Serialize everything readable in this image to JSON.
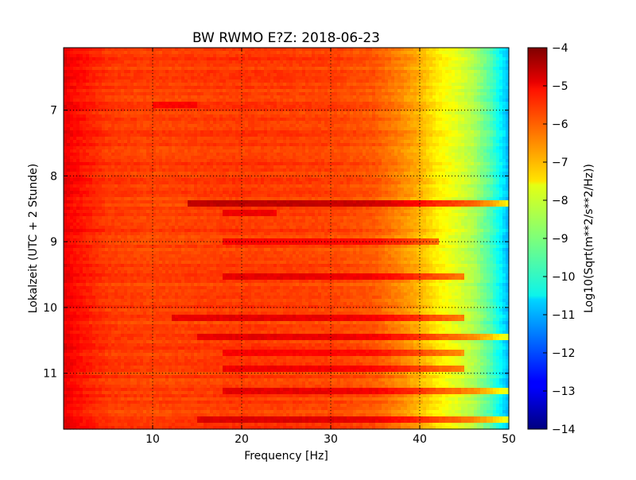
{
  "chart_data": {
    "type": "heatmap",
    "title": "BW RWMO E?Z: 2018-06-23",
    "xlabel": "Frequency [Hz]",
    "ylabel": "Lokalzeit (UTC + 2 Stunde)",
    "xlim": [
      0,
      50
    ],
    "ylim": [
      11.85,
      6.05
    ],
    "y_inverted": true,
    "grid": true,
    "x_ticks": [
      10,
      20,
      30,
      40,
      50
    ],
    "y_ticks": [
      7,
      8,
      9,
      10,
      11
    ],
    "colormap": "jet",
    "colorbar": {
      "label": "Log10(Sqrt(m**2/s**2/Hz))",
      "range": [
        -14,
        -4
      ],
      "ticks": [
        -4,
        -5,
        -6,
        -7,
        -8,
        -9,
        -10,
        -11,
        -12,
        -13,
        -14
      ]
    },
    "spectral_profile": {
      "frequency_hz": [
        0,
        1,
        5,
        10,
        20,
        30,
        35,
        38,
        40,
        42,
        44,
        46,
        48,
        50
      ],
      "log10_amplitude": [
        -5.0,
        -5.3,
        -5.8,
        -5.9,
        -5.8,
        -5.9,
        -6.1,
        -6.6,
        -7.0,
        -7.6,
        -8.0,
        -8.5,
        -9.5,
        -11.0
      ]
    },
    "high_amplitude_bands": [
      {
        "time": 6.9,
        "freq_range": [
          10,
          15
        ],
        "level": -5.2
      },
      {
        "time": 8.42,
        "freq_range": [
          14,
          50
        ],
        "level": -4.6
      },
      {
        "time": 8.58,
        "freq_range": [
          18,
          24
        ],
        "level": -5.1
      },
      {
        "time": 8.98,
        "freq_range": [
          18,
          42
        ],
        "level": -5.2
      },
      {
        "time": 9.55,
        "freq_range": [
          18,
          45
        ],
        "level": -5.0
      },
      {
        "time": 10.18,
        "freq_range": [
          12,
          45
        ],
        "level": -5.0
      },
      {
        "time": 10.45,
        "freq_range": [
          15,
          50
        ],
        "level": -5.0
      },
      {
        "time": 10.7,
        "freq_range": [
          18,
          45
        ],
        "level": -5.2
      },
      {
        "time": 10.95,
        "freq_range": [
          18,
          45
        ],
        "level": -5.1
      },
      {
        "time": 11.28,
        "freq_range": [
          18,
          50
        ],
        "level": -5.0
      },
      {
        "time": 11.72,
        "freq_range": [
          15,
          50
        ],
        "level": -4.9
      }
    ],
    "colors": {
      "grid": "#000000",
      "frame": "#000000",
      "background": "#ffffff"
    }
  }
}
